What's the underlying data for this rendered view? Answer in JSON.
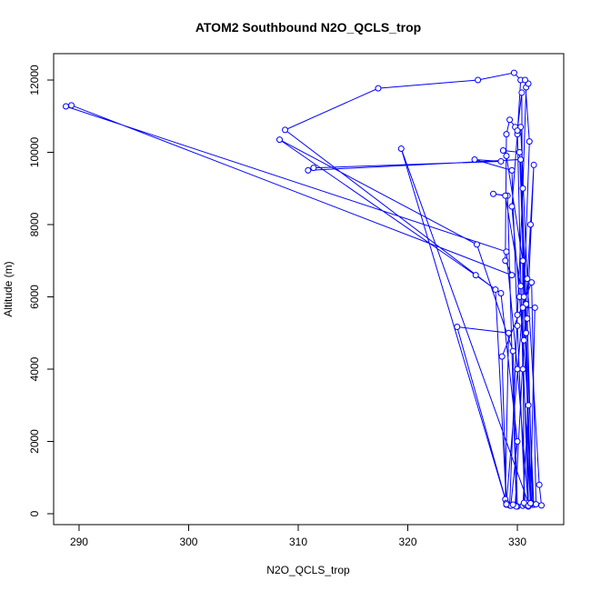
{
  "chart_data": {
    "type": "line",
    "title": "ATOM2 Southbound N2O_QCLS_trop",
    "x_label": "N2O_QCLS_trop",
    "y_label": "Altitude (m)",
    "x": [
      330.5,
      331.0,
      330.2,
      329.5,
      330.0,
      330.3,
      329.7,
      326.4,
      317.3,
      308.8,
      328.0,
      329.0,
      329.3,
      330.0,
      330.5,
      330.8,
      331.0,
      330.7,
      331.1,
      330.6,
      331.2,
      331.5,
      330.8,
      330.2,
      328.7,
      329.0,
      330.5,
      331.3,
      332.2,
      332.0,
      330.9,
      330.3,
      329.8,
      329.3,
      329.0,
      328.9,
      329.5,
      289.3,
      288.8,
      329.0,
      330.0,
      331.0,
      330.7,
      330.0,
      329.5,
      326.1,
      328.5,
      311.4,
      310.9,
      330.3,
      330.8,
      331.0,
      330.0,
      329.6,
      326.3,
      308.3,
      326.2,
      328.5,
      330.0,
      329.4,
      329.8,
      330.6,
      331.2,
      331.5,
      330.9,
      331.4,
      331.0,
      319.4,
      328.9,
      329.2,
      324.5,
      329.0,
      330.5,
      331.6,
      331.2,
      329.9,
      329.1,
      327.8,
      328.9,
      330.3,
      331.0,
      330.6,
      330.4,
      330.0,
      330.5,
      331.2,
      331.7,
      331.3,
      328.6,
      329.0,
      329.6
    ],
    "series": [
      {
        "name": "N2O_QCLS_trop",
        "color": "#0000ff",
        "values": [
          220,
          3000,
          6000,
          8500,
          10500,
          12000,
          12200,
          12000,
          11770,
          10620,
          6200,
          250,
          230,
          5500,
          9000,
          11800,
          11900,
          12000,
          10300,
          6000,
          300,
          250,
          5000,
          10000,
          10050,
          9900,
          7000,
          280,
          230,
          800,
          6500,
          10700,
          10700,
          10900,
          10500,
          7000,
          6600,
          11300,
          11270,
          7250,
          4000,
          200,
          260,
          5200,
          9500,
          9800,
          9750,
          9570,
          9500,
          9800,
          5800,
          230,
          200,
          4500,
          7450,
          10350,
          6600,
          6100,
          2000,
          220,
          230,
          4800,
          8000,
          9650,
          5400,
          250,
          300,
          10100,
          400,
          5000,
          5170,
          300,
          5700,
          5700,
          260,
          200,
          8800,
          8850,
          8800,
          6300,
          220,
          300,
          11650,
          10600,
          4000,
          290,
          260,
          6400,
          4350,
          260,
          250
        ]
      }
    ],
    "xlim": [
      287.68,
      334.23
    ],
    "ylim": [
      -302,
      12730
    ],
    "xticks": [
      290,
      300,
      310,
      320,
      330
    ],
    "yticks": [
      0,
      2000,
      4000,
      6000,
      8000,
      10000,
      12000
    ]
  }
}
